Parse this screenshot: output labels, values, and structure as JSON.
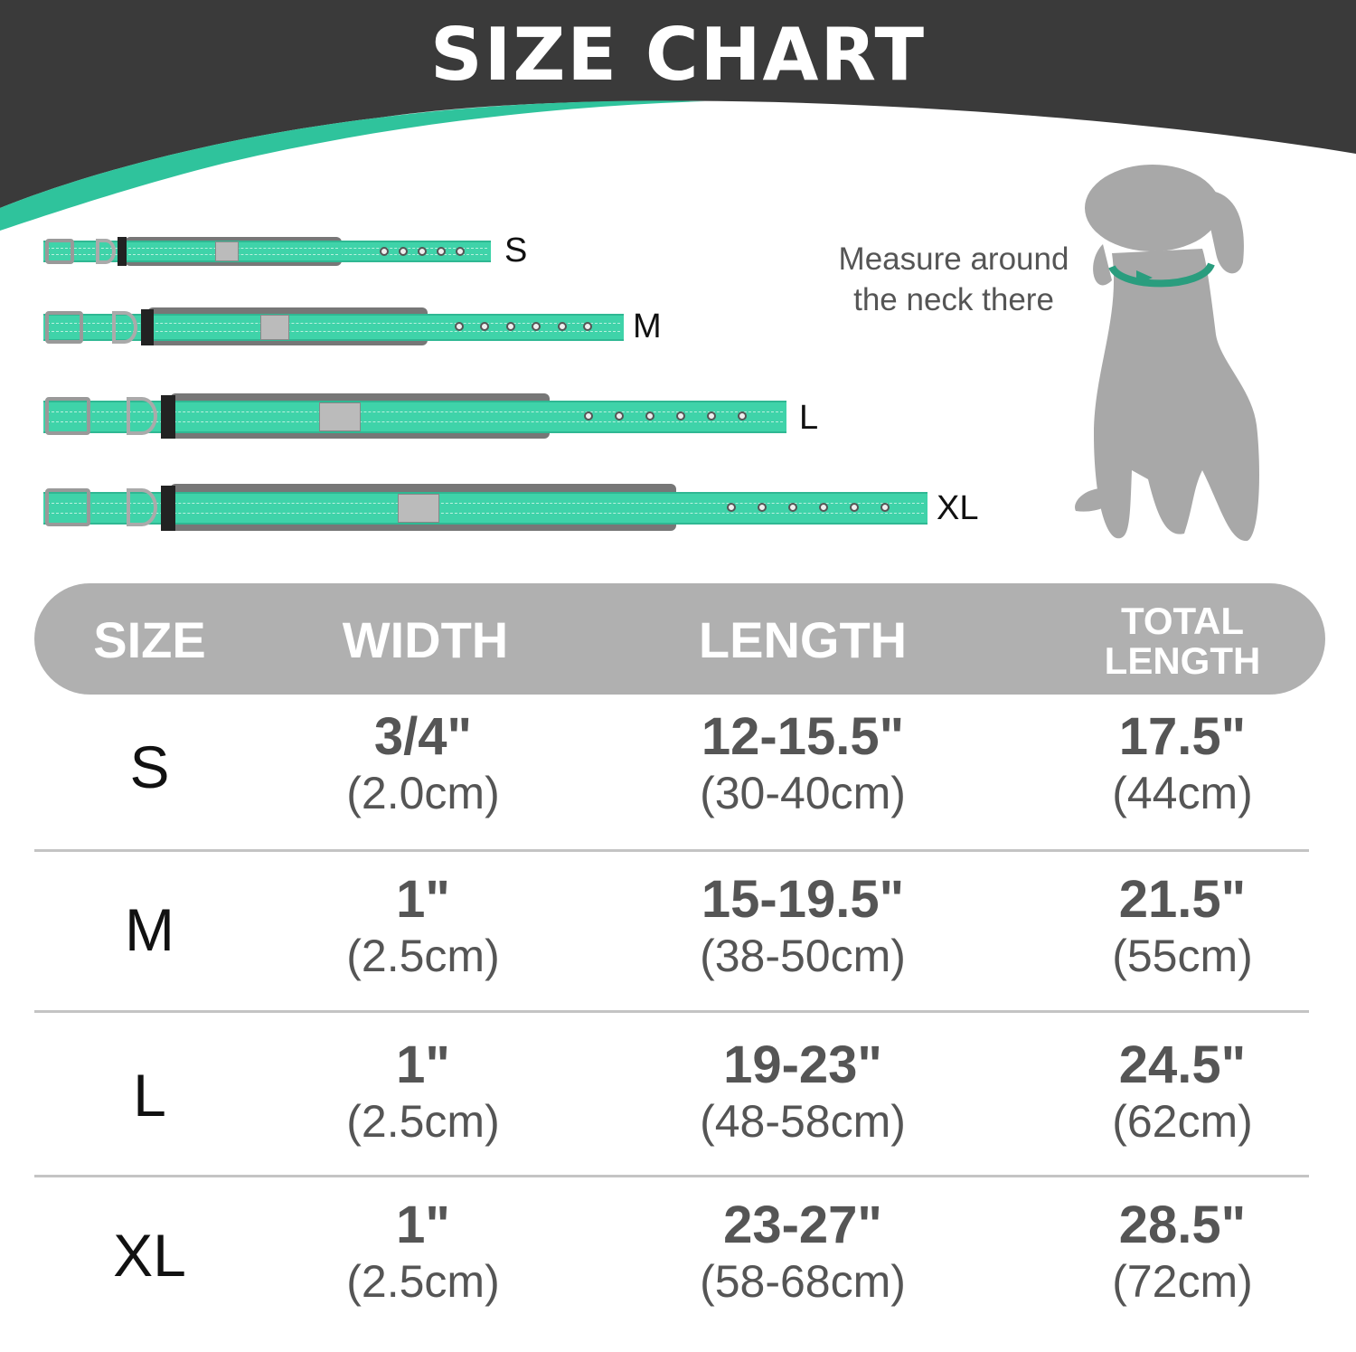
{
  "title": "SIZE CHART",
  "colors": {
    "header": "#3a3a3a",
    "accent": "#2fc39c",
    "collar": "#3fd3a9",
    "table_header": "#b0b0b0",
    "dog": "#a8a8a8"
  },
  "collars": [
    {
      "label": "S",
      "holes": 5
    },
    {
      "label": "M",
      "holes": 6
    },
    {
      "label": "L",
      "holes": 6
    },
    {
      "label": "XL",
      "holes": 6
    }
  ],
  "measure_note": {
    "line1": "Measure around",
    "line2": "the neck there"
  },
  "table": {
    "headers": {
      "size": "SIZE",
      "width": "WIDTH",
      "length": "LENGTH",
      "total_line1": "TOTAL",
      "total_line2": "LENGTH"
    },
    "rows": [
      {
        "size": "S",
        "width": "3/4\"",
        "width_cm": "(2.0cm)",
        "length": "12-15.5\"",
        "length_cm": "(30-40cm)",
        "total": "17.5\"",
        "total_cm": "(44cm)"
      },
      {
        "size": "M",
        "width": "1\"",
        "width_cm": "(2.5cm)",
        "length": "15-19.5\"",
        "length_cm": "(38-50cm)",
        "total": "21.5\"",
        "total_cm": "(55cm)"
      },
      {
        "size": "L",
        "width": "1\"",
        "width_cm": "(2.5cm)",
        "length": "19-23\"",
        "length_cm": "(48-58cm)",
        "total": "24.5\"",
        "total_cm": "(62cm)"
      },
      {
        "size": "XL",
        "width": "1\"",
        "width_cm": "(2.5cm)",
        "length": "23-27\"",
        "length_cm": "(58-68cm)",
        "total": "28.5\"",
        "total_cm": "(72cm)"
      }
    ]
  }
}
